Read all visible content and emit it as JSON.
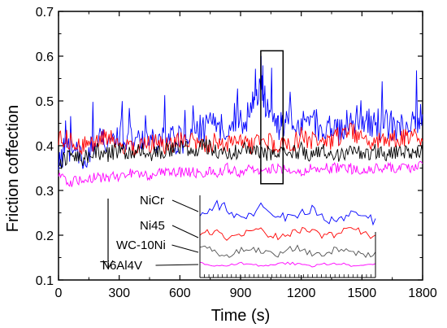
{
  "chart_data": {
    "type": "line",
    "title": "",
    "xlabel": "Time (s)",
    "ylabel": "Friction coffection",
    "xlim": [
      0,
      1800
    ],
    "ylim": [
      0.1,
      0.7
    ],
    "xticks": [
      0,
      300,
      600,
      900,
      1200,
      1500,
      1800
    ],
    "yticks": [
      0.1,
      0.2,
      0.3,
      0.4,
      0.5,
      0.6,
      0.7
    ],
    "grid": false,
    "series": [
      {
        "color": "#0000ff",
        "x": [
          0,
          60,
          120,
          180,
          240,
          300,
          360,
          420,
          480,
          540,
          600,
          660,
          720,
          780,
          840,
          900,
          960,
          1000,
          1020,
          1060,
          1100,
          1140,
          1200,
          1260,
          1320,
          1380,
          1440,
          1500,
          1560,
          1620,
          1680,
          1740,
          1800
        ],
        "y": [
          0.37,
          0.4,
          0.38,
          0.4,
          0.42,
          0.41,
          0.43,
          0.4,
          0.41,
          0.42,
          0.41,
          0.43,
          0.44,
          0.44,
          0.45,
          0.46,
          0.47,
          0.55,
          0.5,
          0.46,
          0.44,
          0.45,
          0.44,
          0.45,
          0.44,
          0.43,
          0.45,
          0.46,
          0.44,
          0.45,
          0.44,
          0.45,
          0.47
        ]
      },
      {
        "color": "#ff0000",
        "x": [
          0,
          60,
          120,
          180,
          240,
          300,
          360,
          420,
          480,
          540,
          600,
          660,
          720,
          780,
          840,
          900,
          960,
          1020,
          1080,
          1140,
          1200,
          1260,
          1320,
          1380,
          1440,
          1500,
          1560,
          1620,
          1680,
          1740,
          1800
        ],
        "y": [
          0.42,
          0.41,
          0.4,
          0.41,
          0.42,
          0.4,
          0.39,
          0.4,
          0.41,
          0.4,
          0.41,
          0.41,
          0.4,
          0.41,
          0.4,
          0.41,
          0.4,
          0.41,
          0.4,
          0.4,
          0.42,
          0.41,
          0.4,
          0.42,
          0.43,
          0.42,
          0.41,
          0.42,
          0.41,
          0.42,
          0.41
        ]
      },
      {
        "color": "#000000",
        "x": [
          0,
          60,
          120,
          180,
          240,
          300,
          360,
          420,
          480,
          540,
          600,
          660,
          720,
          780,
          840,
          900,
          960,
          1020,
          1080,
          1140,
          1200,
          1260,
          1320,
          1380,
          1440,
          1500,
          1560,
          1620,
          1680,
          1740,
          1800
        ],
        "y": [
          0.36,
          0.38,
          0.37,
          0.39,
          0.38,
          0.39,
          0.38,
          0.39,
          0.38,
          0.39,
          0.4,
          0.39,
          0.4,
          0.39,
          0.38,
          0.39,
          0.39,
          0.38,
          0.39,
          0.38,
          0.39,
          0.38,
          0.39,
          0.38,
          0.39,
          0.38,
          0.39,
          0.38,
          0.39,
          0.38,
          0.39
        ]
      },
      {
        "color": "#ff00ff",
        "x": [
          0,
          60,
          120,
          180,
          240,
          300,
          360,
          420,
          480,
          540,
          600,
          660,
          720,
          780,
          840,
          900,
          960,
          1020,
          1080,
          1140,
          1200,
          1260,
          1320,
          1380,
          1440,
          1500,
          1560,
          1620,
          1680,
          1740,
          1800
        ],
        "y": [
          0.33,
          0.32,
          0.32,
          0.33,
          0.33,
          0.33,
          0.34,
          0.33,
          0.34,
          0.34,
          0.34,
          0.34,
          0.34,
          0.34,
          0.35,
          0.34,
          0.35,
          0.34,
          0.35,
          0.35,
          0.34,
          0.35,
          0.35,
          0.35,
          0.35,
          0.34,
          0.35,
          0.35,
          0.35,
          0.35,
          0.36
        ]
      }
    ],
    "highlight_box": {
      "x": [
        1000,
        1110
      ],
      "y": [
        0.315,
        0.612
      ]
    }
  },
  "chart": {
    "legend_labels": [
      "NiCr",
      "Ni45",
      "WC-10Ni",
      "Ti6Al4V"
    ],
    "inset_colors": [
      "#0000ff",
      "#ff0000",
      "#505050",
      "#ff00ff"
    ]
  }
}
